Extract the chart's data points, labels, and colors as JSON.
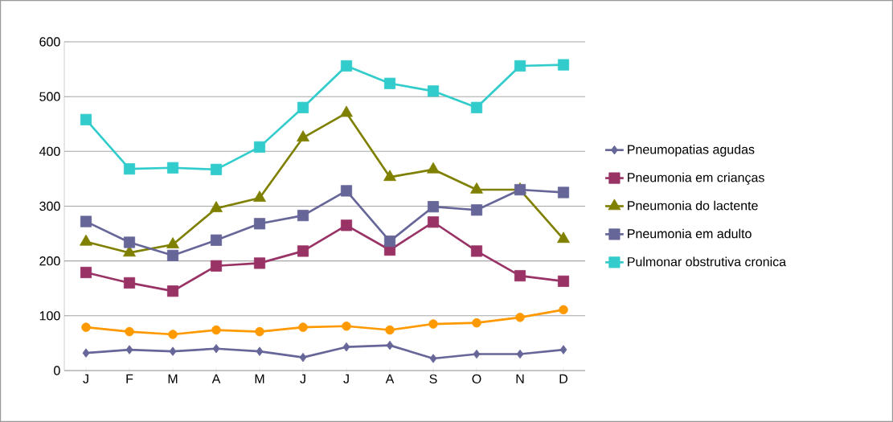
{
  "chart_data": {
    "type": "line",
    "categories": [
      "J",
      "F",
      "M",
      "A",
      "M",
      "J",
      "J",
      "A",
      "S",
      "O",
      "N",
      "D"
    ],
    "series": [
      {
        "name": "Pneumopatias agudas",
        "color": "#666699",
        "marker": "diamond",
        "values": [
          32,
          38,
          35,
          40,
          35,
          24,
          43,
          46,
          22,
          30,
          30,
          38
        ]
      },
      {
        "name": "Pneumonia em crianças",
        "color": "#993366",
        "marker": "square",
        "values": [
          179,
          160,
          145,
          191,
          196,
          218,
          265,
          220,
          271,
          218,
          173,
          163
        ]
      },
      {
        "name": "Pneumonia do lactente",
        "color": "#808000",
        "marker": "triangle",
        "values": [
          235,
          215,
          230,
          296,
          315,
          425,
          470,
          353,
          367,
          330,
          330,
          240
        ]
      },
      {
        "name": "Pneumonia em adulto",
        "color": "#666699",
        "marker": "square",
        "values": [
          272,
          234,
          210,
          238,
          268,
          283,
          328,
          236,
          299,
          293,
          330,
          325
        ]
      },
      {
        "name": "Pulmonar obstrutiva cronica",
        "color": "#33cccc",
        "marker": "square",
        "values": [
          458,
          368,
          370,
          367,
          408,
          480,
          556,
          524,
          510,
          480,
          556,
          558
        ]
      },
      {
        "color": "#ff9900",
        "marker": "circle",
        "values": [
          79,
          71,
          66,
          74,
          71,
          79,
          81,
          74,
          85,
          87,
          97,
          111
        ]
      }
    ],
    "ylim": [
      0,
      600
    ],
    "yticks": [
      0,
      100,
      200,
      300,
      400,
      500,
      600
    ],
    "grid": "y",
    "legend": "right"
  }
}
